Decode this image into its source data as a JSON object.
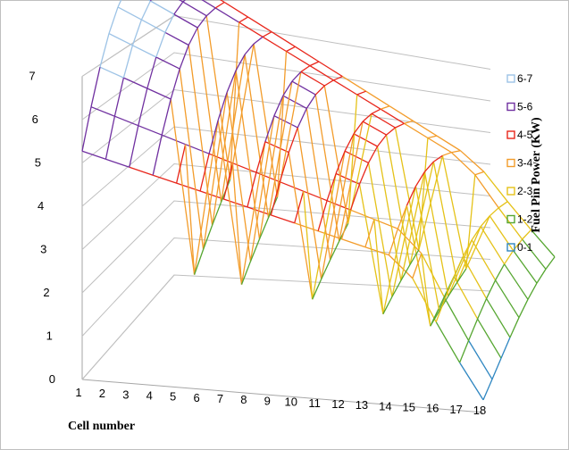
{
  "chart_data": {
    "type": "surface",
    "title": "",
    "xlabel": "Cell number",
    "zlabel": "Fuel Pin Power (KW)",
    "x_ticks": [
      "1",
      "2",
      "3",
      "4",
      "5",
      "6",
      "7",
      "8",
      "9",
      "10",
      "11",
      "12",
      "13",
      "14",
      "15",
      "16",
      "17",
      "18"
    ],
    "z_ticks": [
      "0",
      "1",
      "2",
      "3",
      "4",
      "5",
      "6",
      "7"
    ],
    "zlim": [
      0,
      7
    ],
    "grid": true,
    "legend_position": "right",
    "legend": [
      {
        "label": "6-7",
        "color": "#9dc3e6"
      },
      {
        "label": "5-6",
        "color": "#7030a0"
      },
      {
        "label": "4-5",
        "color": "#e8261b"
      },
      {
        "label": "3-4",
        "color": "#f39c2a"
      },
      {
        "label": "2-3",
        "color": "#e5c218"
      },
      {
        "label": "1-2",
        "color": "#55a630"
      },
      {
        "label": "0-1",
        "color": "#2e86c1"
      }
    ],
    "bands": [
      {
        "range": [
          6,
          7
        ],
        "color": "#9dc3e6"
      },
      {
        "range": [
          5,
          6
        ],
        "color": "#7030a0"
      },
      {
        "range": [
          4,
          5
        ],
        "color": "#e8261b"
      },
      {
        "range": [
          3,
          4
        ],
        "color": "#f39c2a"
      },
      {
        "range": [
          2,
          3
        ],
        "color": "#e5c218"
      },
      {
        "range": [
          1,
          2
        ],
        "color": "#55a630"
      },
      {
        "range": [
          0,
          1
        ],
        "color": "#2e86c1"
      }
    ],
    "dip_cells": [
      5,
      7,
      10,
      13,
      15
    ],
    "series_count": 9,
    "surface_peak_kw": 6.4,
    "dip_min_kw": 0.8,
    "edge_min_kw": 0.0
  }
}
